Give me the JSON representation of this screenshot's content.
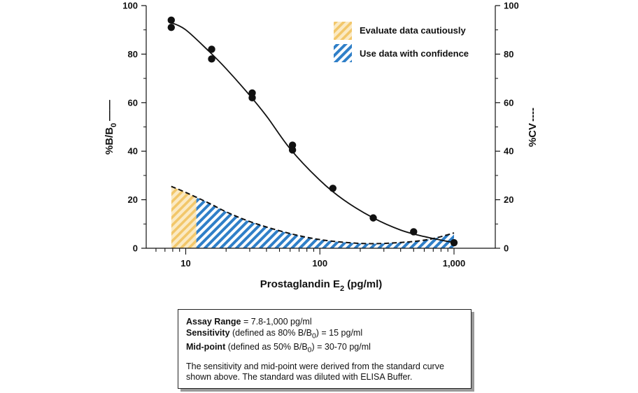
{
  "chart_data": {
    "type": "line",
    "x_scale": "log",
    "xlim": [
      5,
      1500
    ],
    "ylim_left": [
      0,
      100
    ],
    "ylim_right": [
      0,
      100
    ],
    "xlabel": {
      "text": "Prostaglandin E",
      "sub": "2",
      "unit": " (pg/ml)"
    },
    "ylabel_left": {
      "text": "%B/B",
      "sub": "0",
      "line_marker": "——"
    },
    "ylabel_right": {
      "text": "%CV",
      "line_marker": "----"
    },
    "x_ticks": [
      {
        "value": 10,
        "label": "10"
      },
      {
        "value": 100,
        "label": "100"
      },
      {
        "value": 1000,
        "label": "1,000"
      }
    ],
    "y_ticks_left": [
      "0",
      "20",
      "40",
      "60",
      "80",
      "100"
    ],
    "y_ticks_right": [
      "0",
      "20",
      "40",
      "60",
      "80",
      "100"
    ],
    "series": [
      {
        "name": "%B/B0 standard curve",
        "style": "solid",
        "points": [
          {
            "x": 7.8,
            "y": 94
          },
          {
            "x": 7.8,
            "y": 91
          },
          {
            "x": 15.6,
            "y": 82
          },
          {
            "x": 15.6,
            "y": 78
          },
          {
            "x": 31.3,
            "y": 64
          },
          {
            "x": 31.3,
            "y": 62
          },
          {
            "x": 62.5,
            "y": 42.5
          },
          {
            "x": 62.5,
            "y": 40.5
          },
          {
            "x": 125,
            "y": 24.7
          },
          {
            "x": 250,
            "y": 12.5
          },
          {
            "x": 500,
            "y": 6.8
          },
          {
            "x": 1000,
            "y": 2.3
          }
        ],
        "fit": [
          {
            "x": 7.8,
            "y": 93
          },
          {
            "x": 10,
            "y": 90
          },
          {
            "x": 15,
            "y": 81
          },
          {
            "x": 20,
            "y": 74
          },
          {
            "x": 30,
            "y": 63
          },
          {
            "x": 40,
            "y": 54.5
          },
          {
            "x": 60,
            "y": 41
          },
          {
            "x": 100,
            "y": 28
          },
          {
            "x": 150,
            "y": 20
          },
          {
            "x": 250,
            "y": 12.5
          },
          {
            "x": 400,
            "y": 7.5
          },
          {
            "x": 600,
            "y": 4.8
          },
          {
            "x": 1000,
            "y": 2.3
          }
        ]
      },
      {
        "name": "%CV",
        "style": "dashed",
        "points": [
          {
            "x": 7.8,
            "y": 25.5
          },
          {
            "x": 10,
            "y": 23
          },
          {
            "x": 15,
            "y": 18.5
          },
          {
            "x": 20,
            "y": 15
          },
          {
            "x": 30,
            "y": 11
          },
          {
            "x": 50,
            "y": 7.2
          },
          {
            "x": 80,
            "y": 4.5
          },
          {
            "x": 120,
            "y": 3
          },
          {
            "x": 200,
            "y": 2
          },
          {
            "x": 300,
            "y": 2
          },
          {
            "x": 500,
            "y": 2.8
          },
          {
            "x": 700,
            "y": 4
          },
          {
            "x": 1000,
            "y": 6.3
          }
        ]
      }
    ],
    "regions": [
      {
        "name": "Evaluate data cautiously",
        "x_from": 7.8,
        "x_to": 12,
        "color": "#f2c76a",
        "pattern": "diagonal-hatch"
      },
      {
        "name": "Use data with confidence",
        "x_from": 12,
        "x_to": 1000,
        "color": "#2f7fc8",
        "pattern": "diagonal-hatch"
      }
    ],
    "legend": {
      "position": "top-right",
      "entries": [
        "Evaluate data cautiously",
        "Use data with confidence"
      ]
    }
  },
  "info_box": {
    "line1_bold": "Assay Range",
    "line1_rest": " = 7.8-1,000 pg/ml",
    "line2_bold": "Sensitivity",
    "line2_pre": " (defined as 80% B/B",
    "line2_sub": "0",
    "line2_post": ") = 15 pg/ml",
    "line3_bold": "Mid-point",
    "line3_pre": " (defined as 50% B/B",
    "line3_sub": "0",
    "line3_post": ") = 30-70 pg/ml",
    "note_line1": "The sensitivity and mid-point were derived from the standard curve",
    "note_line2": "shown above. The standard was diluted with ELISA Buffer."
  }
}
